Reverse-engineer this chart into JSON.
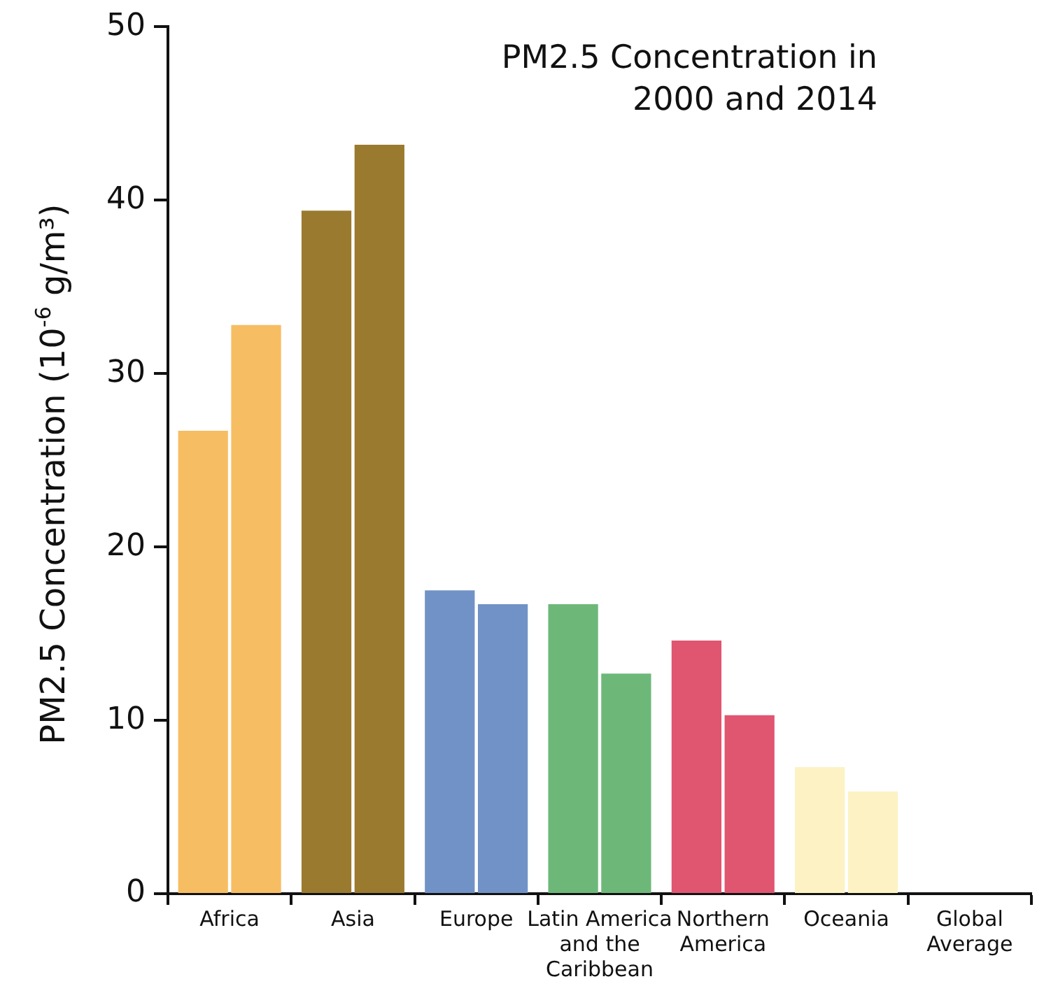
{
  "chart_data": {
    "type": "bar",
    "title": "PM2.5 Concentration in 2000 and 2014",
    "ylabel": "PM2.5 Concentration (10$^{-6}$ g/m³)",
    "categories": [
      "Africa",
      "Asia",
      "Europe",
      "Latin America and the Caribbean",
      "Northern America",
      "Oceania",
      "Global Average"
    ],
    "series": [
      {
        "values": [
          26.7,
          39.4,
          17.5,
          16.7,
          14.6,
          7.3,
          null
        ],
        "colors": [
          "#f7bd63",
          "#9a7a2e",
          "#7192c6",
          "#6db879",
          "#e05570",
          "#fcf2c4",
          "#ffffff"
        ]
      },
      {
        "values": [
          32.8,
          43.2,
          16.7,
          12.7,
          10.3,
          5.9,
          null
        ],
        "colors": [
          "#f7bd63",
          "#9a7a2e",
          "#7192c6",
          "#6db879",
          "#e05570",
          "#fcf2c4",
          "#ffffff"
        ]
      }
    ],
    "ylim": [
      0,
      50
    ],
    "yticks": [
      0,
      10,
      20,
      30,
      40,
      50
    ],
    "grid": false,
    "legend": false
  }
}
